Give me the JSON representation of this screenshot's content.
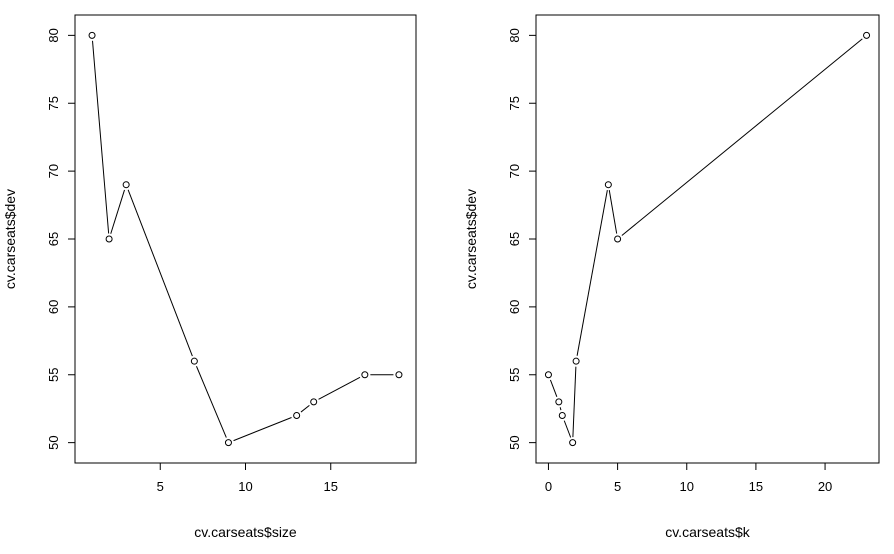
{
  "chart_data": [
    {
      "type": "line",
      "markers": "open-circle",
      "title": "",
      "xlabel": "cv.carseats$size",
      "ylabel": "cv.carseats$dev",
      "xlim": [
        0,
        20
      ],
      "ylim": [
        48.5,
        81.5
      ],
      "xticks": [
        5,
        10,
        15
      ],
      "yticks": [
        50,
        55,
        60,
        65,
        70,
        75,
        80
      ],
      "grid": false,
      "x": [
        1,
        2,
        3,
        7,
        9,
        13,
        14,
        17,
        19
      ],
      "y": [
        80,
        65,
        69,
        56,
        50,
        52,
        53,
        55,
        55
      ]
    },
    {
      "type": "line",
      "markers": "open-circle",
      "title": "",
      "xlabel": "cv.carseats$k",
      "ylabel": "cv.carseats$dev",
      "xlim": [
        -0.9,
        23.9
      ],
      "ylim": [
        48.5,
        81.5
      ],
      "xticks": [
        0,
        5,
        10,
        15,
        20
      ],
      "yticks": [
        50,
        55,
        60,
        65,
        70,
        75,
        80
      ],
      "grid": false,
      "x": [
        0,
        0.75,
        1.0,
        1.75,
        2.0,
        4.33,
        5.0,
        23.0
      ],
      "y": [
        55,
        53,
        52,
        50,
        56,
        69,
        65,
        80
      ]
    }
  ]
}
